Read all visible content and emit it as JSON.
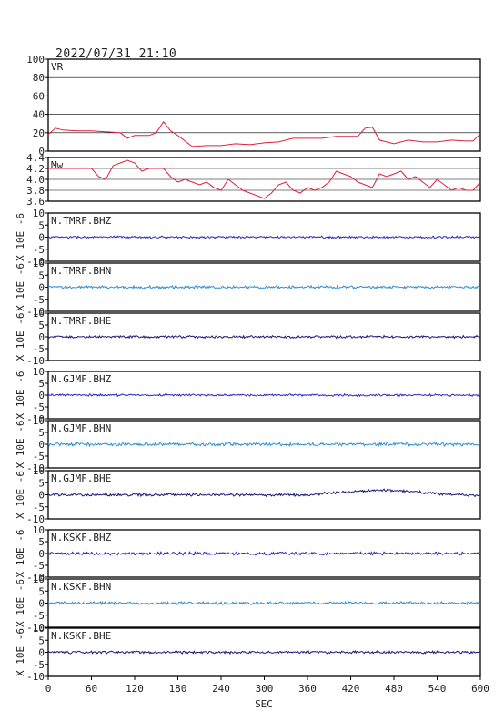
{
  "title": "2022/07/31 21:10",
  "xlabel": "SEC",
  "x_ticks": [
    "0",
    "60",
    "120",
    "180",
    "240",
    "300",
    "360",
    "420",
    "480",
    "540",
    "600"
  ],
  "seis_ylabel": "X 10E -6",
  "colors": {
    "red": "#e0203c",
    "blue": "#2a2ac8",
    "lightblue": "#2f8fd6",
    "navy": "#1a1a78"
  },
  "chart_data": [
    {
      "type": "line",
      "label": "VR",
      "ylim": [
        0,
        100
      ],
      "yticks": [
        "0",
        "20",
        "40",
        "60",
        "80",
        "100"
      ],
      "grid": true,
      "color": "red",
      "x": [
        0,
        10,
        20,
        40,
        60,
        80,
        100,
        110,
        120,
        140,
        150,
        160,
        170,
        180,
        200,
        220,
        240,
        260,
        280,
        300,
        320,
        340,
        360,
        380,
        400,
        420,
        430,
        440,
        450,
        460,
        480,
        500,
        520,
        540,
        560,
        580,
        590,
        600
      ],
      "values": [
        18,
        25,
        23,
        22,
        22,
        21,
        20,
        14,
        17,
        17,
        20,
        32,
        22,
        17,
        5,
        6,
        6,
        8,
        7,
        9,
        10,
        14,
        14,
        14,
        16,
        16,
        16,
        25,
        26,
        12,
        8,
        12,
        10,
        10,
        12,
        11,
        11,
        19
      ]
    },
    {
      "type": "line",
      "label": "Mw",
      "ylim": [
        3.6,
        4.4
      ],
      "yticks": [
        "3.6",
        "3.8",
        "4.0",
        "4.2",
        "4.4"
      ],
      "grid": true,
      "color": "red",
      "x": [
        0,
        20,
        40,
        60,
        70,
        80,
        90,
        100,
        110,
        120,
        130,
        140,
        150,
        160,
        170,
        180,
        190,
        200,
        210,
        220,
        230,
        240,
        250,
        260,
        270,
        280,
        290,
        300,
        310,
        320,
        330,
        340,
        350,
        360,
        370,
        380,
        390,
        400,
        410,
        420,
        430,
        440,
        450,
        460,
        470,
        480,
        490,
        500,
        510,
        520,
        530,
        540,
        550,
        560,
        570,
        580,
        590,
        600
      ],
      "values": [
        4.2,
        4.2,
        4.2,
        4.2,
        4.05,
        4.0,
        4.25,
        4.3,
        4.35,
        4.3,
        4.15,
        4.2,
        4.2,
        4.2,
        4.05,
        3.95,
        4.0,
        3.95,
        3.9,
        3.95,
        3.85,
        3.8,
        4.0,
        3.9,
        3.8,
        3.75,
        3.7,
        3.65,
        3.75,
        3.9,
        3.95,
        3.8,
        3.75,
        3.85,
        3.8,
        3.85,
        3.95,
        4.15,
        4.1,
        4.05,
        3.95,
        3.9,
        3.85,
        4.1,
        4.05,
        4.1,
        4.15,
        4.0,
        4.05,
        3.95,
        3.85,
        4.0,
        3.9,
        3.8,
        3.85,
        3.8,
        3.8,
        3.95
      ]
    },
    {
      "type": "line",
      "label": "N.TMRF.BHZ",
      "ylim": [
        -10,
        10
      ],
      "yticks": [
        "-10",
        "-5",
        "0",
        "5",
        "10"
      ],
      "color": "blue",
      "noise": 0.35,
      "drift": []
    },
    {
      "type": "line",
      "label": "N.TMRF.BHN",
      "ylim": [
        -10,
        10
      ],
      "yticks": [
        "-10",
        "-5",
        "0",
        "5",
        "10"
      ],
      "color": "lightblue",
      "noise": 0.45,
      "drift": []
    },
    {
      "type": "line",
      "label": "N.TMRF.BHE",
      "ylim": [
        -10,
        10
      ],
      "yticks": [
        "-10",
        "-5",
        "0",
        "5",
        "10"
      ],
      "color": "navy",
      "noise": 0.4,
      "drift": []
    },
    {
      "type": "line",
      "label": "N.GJMF.BHZ",
      "ylim": [
        -10,
        10
      ],
      "yticks": [
        "-10",
        "-5",
        "0",
        "5",
        "10"
      ],
      "color": "blue",
      "noise": 0.35,
      "drift": []
    },
    {
      "type": "line",
      "label": "N.GJMF.BHN",
      "ylim": [
        -10,
        10
      ],
      "yticks": [
        "-10",
        "-5",
        "0",
        "5",
        "10"
      ],
      "color": "lightblue",
      "noise": 0.55,
      "drift": []
    },
    {
      "type": "line",
      "label": "N.GJMF.BHE",
      "ylim": [
        -10,
        10
      ],
      "yticks": [
        "-10",
        "-5",
        "0",
        "5",
        "10"
      ],
      "color": "navy",
      "noise": 0.45,
      "drift": [
        [
          0,
          0
        ],
        [
          360,
          0
        ],
        [
          400,
          1
        ],
        [
          460,
          2
        ],
        [
          520,
          1
        ],
        [
          600,
          -0.5
        ]
      ]
    },
    {
      "type": "line",
      "label": "N.KSKF.BHZ",
      "ylim": [
        -10,
        10
      ],
      "yticks": [
        "-10",
        "-5",
        "0",
        "5",
        "10"
      ],
      "color": "blue",
      "noise": 0.5,
      "drift": []
    },
    {
      "type": "line",
      "label": "N.KSKF.BHN",
      "ylim": [
        -10,
        10
      ],
      "yticks": [
        "-10",
        "-5",
        "0",
        "5",
        "10"
      ],
      "color": "lightblue",
      "noise": 0.45,
      "drift": []
    },
    {
      "type": "line",
      "label": "N.KSKF.BHE",
      "ylim": [
        -10,
        10
      ],
      "yticks": [
        "-10",
        "-5",
        "0",
        "5",
        "10"
      ],
      "color": "navy",
      "noise": 0.4,
      "drift": []
    }
  ]
}
